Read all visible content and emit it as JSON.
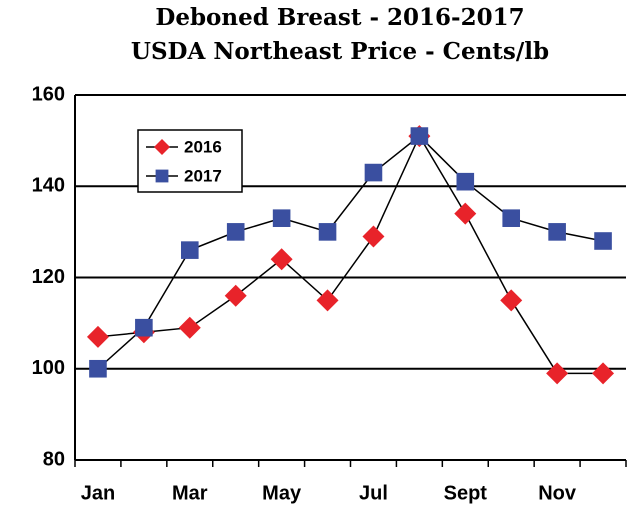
{
  "chart_data": {
    "type": "line",
    "title": [
      "Deboned Breast - 2016-2017",
      "USDA Northeast Price - Cents/lb"
    ],
    "categories": [
      "Jan",
      null,
      "Mar",
      null,
      "May",
      null,
      "Jul",
      null,
      "Sept",
      null,
      "Nov",
      null
    ],
    "series": [
      {
        "name": "2016",
        "color": "#e8232a",
        "marker": "diamond",
        "values": [
          107,
          108,
          109,
          116,
          124,
          115,
          129,
          151,
          134,
          115,
          99,
          99
        ]
      },
      {
        "name": "2017",
        "color": "#3a4fa0",
        "marker": "square",
        "values": [
          100,
          109,
          126,
          130,
          133,
          130,
          143,
          151,
          141,
          133,
          130,
          128
        ]
      }
    ],
    "ylim": [
      80,
      160
    ],
    "yticks": [
      80,
      100,
      120,
      140,
      160
    ],
    "grid": true,
    "legend": "upper left"
  }
}
